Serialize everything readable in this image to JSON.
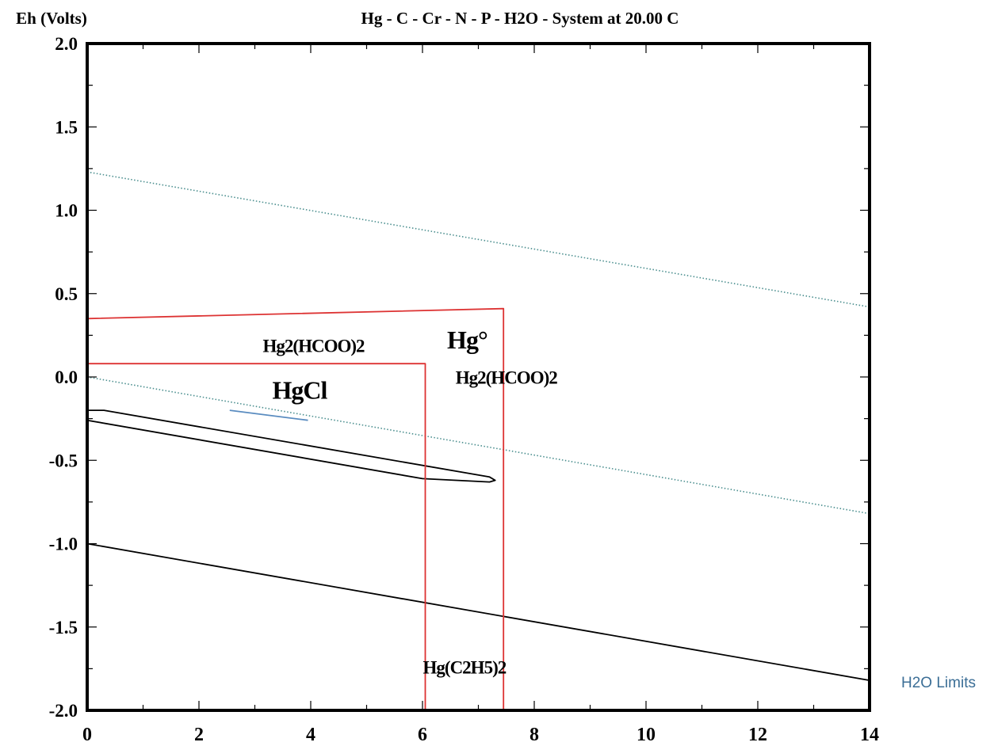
{
  "chart_data": {
    "type": "line",
    "title": "Hg - C - Cr - N - P - H2O - System at 20.00 C",
    "ylabel": "Eh (Volts)",
    "xlabel": "",
    "xlim": [
      0,
      14
    ],
    "ylim": [
      -2.0,
      2.0
    ],
    "x_ticks": [
      "0",
      "2",
      "4",
      "6",
      "8",
      "10",
      "12",
      "14"
    ],
    "y_ticks": [
      "2.0",
      "1.5",
      "1.0",
      "0.5",
      "0.0",
      "-0.5",
      "-1.0",
      "-1.5",
      "-2.0"
    ],
    "grid": false,
    "legend": {
      "label": "H2O Limits",
      "position": "right"
    },
    "series": [
      {
        "name": "H2O Limits",
        "style": "dotted",
        "color": "#4a8e8e",
        "x": [
          0,
          14
        ],
        "y": [
          1.23,
          0.42
        ]
      },
      {
        "name": "H2O Limits",
        "style": "dotted",
        "color": "#4a8e8e",
        "x": [
          0,
          14
        ],
        "y": [
          0.0,
          -0.82
        ]
      },
      {
        "style": "solid",
        "color": "#000000",
        "x": [
          0,
          14
        ],
        "y": [
          -1.0,
          -1.82
        ]
      },
      {
        "style": "solid",
        "color": "#000000",
        "x": [
          0,
          0.3,
          7.2,
          7.3,
          7.2,
          6.0,
          0
        ],
        "y": [
          -0.2,
          -0.2,
          -0.6,
          -0.62,
          -0.63,
          -0.61,
          -0.26
        ]
      },
      {
        "style": "solid",
        "color": "#dd3333",
        "x": [
          0,
          7.45,
          7.45
        ],
        "y": [
          0.35,
          0.41,
          -2.0
        ]
      },
      {
        "style": "solid",
        "color": "#dd3333",
        "x": [
          0,
          6.05,
          6.05
        ],
        "y": [
          0.08,
          0.08,
          -2.0
        ]
      },
      {
        "style": "solid",
        "color": "#5a8cc0",
        "x": [
          2.55,
          3.95
        ],
        "y": [
          -0.2,
          -0.26
        ]
      }
    ],
    "annotations": [
      {
        "text": "Hg2(HCOO)2",
        "x": 4.05,
        "y": 0.15,
        "size": "medium"
      },
      {
        "text": "Hg°",
        "x": 6.8,
        "y": 0.17,
        "size": "large"
      },
      {
        "text": "Hg2(HCOO)2",
        "x": 7.5,
        "y": -0.04,
        "size": "medium"
      },
      {
        "text": "HgCl",
        "x": 3.8,
        "y": -0.13,
        "size": "large"
      },
      {
        "text": "Hg(C2H5)2",
        "x": 6.75,
        "y": -1.78,
        "size": "medium"
      }
    ]
  }
}
